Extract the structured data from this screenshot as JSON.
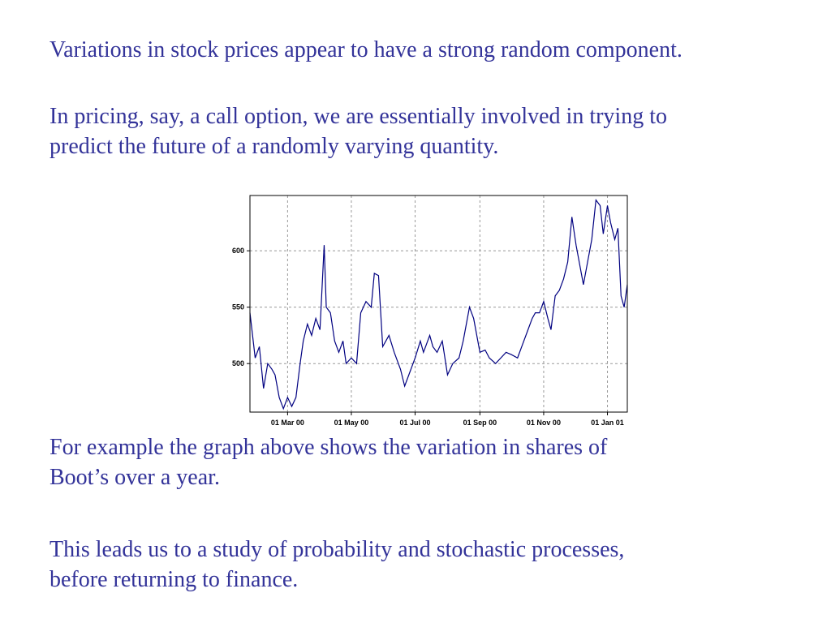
{
  "paragraphs": [
    [
      "Variations in stock prices appear to have a strong random component."
    ],
    [
      "In pricing, say, a call option, we are essentially involved in trying to",
      "predict the future of a randomly varying quantity."
    ],
    [
      "For example the graph above shows the variation in shares of",
      "Boot’s over a year."
    ],
    [
      "This leads us to a study of probability and stochastic processes,",
      "before returning to finance."
    ]
  ],
  "chart_data": {
    "type": "line",
    "color": "#000080",
    "grid": true,
    "x": [
      "2000-01-25",
      "2000-01-30",
      "2000-02-03",
      "2000-02-07",
      "2000-02-11",
      "2000-02-15",
      "2000-02-18",
      "2000-02-22",
      "2000-02-26",
      "2000-03-01",
      "2000-03-05",
      "2000-03-09",
      "2000-03-13",
      "2000-03-16",
      "2000-03-20",
      "2000-03-24",
      "2000-03-28",
      "2000-04-01",
      "2000-04-05",
      "2000-04-07",
      "2000-04-11",
      "2000-04-15",
      "2000-04-19",
      "2000-04-23",
      "2000-04-26",
      "2000-05-01",
      "2000-05-06",
      "2000-05-10",
      "2000-05-15",
      "2000-05-20",
      "2000-05-23",
      "2000-05-27",
      "2000-05-31",
      "2000-06-06",
      "2000-06-11",
      "2000-06-17",
      "2000-06-21",
      "2000-06-25",
      "2000-07-01",
      "2000-07-06",
      "2000-07-09",
      "2000-07-15",
      "2000-07-18",
      "2000-07-22",
      "2000-07-27",
      "2000-08-01",
      "2000-08-06",
      "2000-08-12",
      "2000-08-16",
      "2000-08-22",
      "2000-08-26",
      "2000-09-01",
      "2000-09-06",
      "2000-09-10",
      "2000-09-16",
      "2000-09-21",
      "2000-09-26",
      "2000-10-01",
      "2000-10-07",
      "2000-10-11",
      "2000-10-17",
      "2000-10-21",
      "2000-10-24",
      "2000-10-28",
      "2000-11-01",
      "2000-11-05",
      "2000-11-08",
      "2000-11-12",
      "2000-11-16",
      "2000-11-20",
      "2000-11-24",
      "2000-11-28",
      "2000-12-02",
      "2000-12-05",
      "2000-12-09",
      "2000-12-13",
      "2000-12-17",
      "2000-12-21",
      "2000-12-25",
      "2000-12-28",
      "2001-01-01",
      "2001-01-04",
      "2001-01-08",
      "2001-01-11",
      "2001-01-14",
      "2001-01-17",
      "2001-01-20"
    ],
    "values": [
      545,
      505,
      515,
      478,
      500,
      495,
      490,
      470,
      460,
      470,
      462,
      470,
      500,
      520,
      535,
      525,
      540,
      530,
      605,
      550,
      545,
      520,
      510,
      520,
      500,
      505,
      500,
      545,
      555,
      550,
      580,
      578,
      515,
      525,
      510,
      495,
      480,
      490,
      505,
      520,
      510,
      525,
      515,
      510,
      520,
      490,
      500,
      505,
      520,
      550,
      540,
      510,
      512,
      505,
      500,
      505,
      510,
      508,
      505,
      515,
      530,
      540,
      545,
      545,
      555,
      540,
      530,
      560,
      565,
      575,
      590,
      630,
      605,
      590,
      570,
      590,
      610,
      645,
      640,
      615,
      640,
      625,
      610,
      620,
      560,
      550,
      570
    ],
    "xlim": [
      "2000-01-25",
      "2001-01-20"
    ],
    "xticks": [
      {
        "value": "2000-03-01",
        "label": "01 Mar 00"
      },
      {
        "value": "2000-05-01",
        "label": "01 May 00"
      },
      {
        "value": "2000-07-01",
        "label": "01 Jul 00"
      },
      {
        "value": "2000-09-01",
        "label": "01 Sep 00"
      },
      {
        "value": "2000-11-01",
        "label": "01 Nov 00"
      },
      {
        "value": "2001-01-01",
        "label": "01 Jan 01"
      }
    ],
    "ylim": [
      457,
      649
    ],
    "yticks": [
      500,
      550,
      600
    ]
  }
}
